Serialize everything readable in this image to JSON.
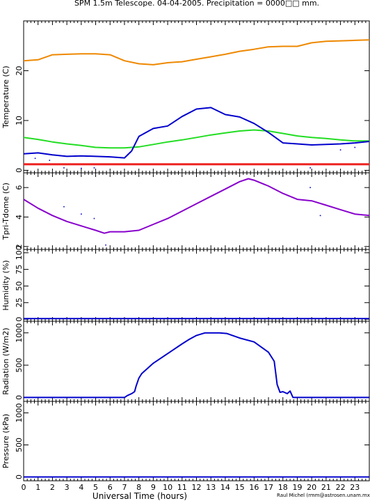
{
  "chart_data": {
    "type": "line",
    "title": "SPM 1.5m Telescope. 04-04-2005. Precipitation = 0000□□ mm.",
    "xlabel": "Universal Time (hours)",
    "credit": "Raul Michel (rmm@astrosen.unam.mx)",
    "xlim": [
      0,
      24
    ],
    "x_ticks": [
      0,
      1,
      2,
      3,
      4,
      5,
      6,
      7,
      8,
      9,
      10,
      11,
      12,
      13,
      14,
      15,
      16,
      17,
      18,
      19,
      20,
      21,
      22,
      23
    ],
    "colors": {
      "orange": "#ee8800",
      "blue": "#0000cc",
      "green": "#22dd22",
      "red": "#ee2222",
      "purple": "#8800cc"
    },
    "panels": [
      {
        "ylabel": "Temperature (C)",
        "ylim": [
          -0.5,
          30
        ],
        "y_ticks": [
          0,
          10,
          20
        ],
        "series": [
          {
            "color": "orange",
            "style": "line",
            "x": [
              0,
              1,
              2,
              3,
              4,
              5,
              6,
              7,
              8,
              9,
              10,
              11,
              12,
              13,
              14,
              15,
              16,
              17,
              18,
              19,
              20,
              21,
              22,
              23,
              24
            ],
            "values": [
              22.0,
              22.2,
              23.2,
              23.3,
              23.4,
              23.4,
              23.2,
              22.0,
              21.4,
              21.2,
              21.6,
              21.8,
              22.3,
              22.8,
              23.3,
              23.9,
              24.3,
              24.8,
              24.9,
              24.9,
              25.6,
              25.9,
              26.0,
              26.1,
              26.2
            ]
          },
          {
            "color": "green",
            "style": "line",
            "x": [
              0,
              1,
              2,
              3,
              4,
              5,
              6,
              7,
              8,
              9,
              10,
              11,
              12,
              13,
              14,
              15,
              16,
              17,
              18,
              19,
              20,
              21,
              22,
              23,
              24
            ],
            "values": [
              6.6,
              6.2,
              5.7,
              5.3,
              5.0,
              4.6,
              4.5,
              4.5,
              4.7,
              5.2,
              5.7,
              6.1,
              6.6,
              7.1,
              7.5,
              7.9,
              8.1,
              7.9,
              7.4,
              6.9,
              6.6,
              6.4,
              6.1,
              5.9,
              5.9
            ]
          },
          {
            "color": "blue",
            "style": "line",
            "x": [
              0,
              1,
              2,
              3,
              4,
              5,
              6,
              7,
              7.5,
              8,
              9,
              10,
              11,
              12,
              13,
              14,
              15,
              16,
              17,
              18,
              19,
              20,
              21,
              22,
              23,
              24
            ],
            "values": [
              3.3,
              3.5,
              3.1,
              2.8,
              2.9,
              2.8,
              2.7,
              2.5,
              3.9,
              6.8,
              8.4,
              8.9,
              10.8,
              12.3,
              12.6,
              11.2,
              10.7,
              9.4,
              7.6,
              5.5,
              5.3,
              5.1,
              5.2,
              5.3,
              5.5,
              5.8
            ]
          },
          {
            "color": "red",
            "style": "line",
            "x": [
              0,
              24
            ],
            "values": [
              1.2,
              1.2
            ]
          },
          {
            "color": "blue",
            "style": "points",
            "x": [
              0.8,
              1.8,
              2.8,
              4.0,
              4.9,
              19.9,
              22.0,
              23.0
            ],
            "values": [
              2.4,
              2.0,
              0.5,
              0.4,
              0.5,
              0.5,
              4.1,
              4.6
            ]
          }
        ]
      },
      {
        "ylabel": "Tpri-Tdome (C)",
        "ylim": [
          1.8,
          7.0
        ],
        "y_ticks": [
          2,
          4,
          6
        ],
        "series": [
          {
            "color": "purple",
            "style": "line",
            "x": [
              0,
              1,
              2,
              3,
              4,
              5,
              5.6,
              6,
              7,
              8,
              9,
              10,
              11,
              12,
              13,
              14,
              15,
              15.6,
              16,
              17,
              18,
              19,
              20,
              21,
              22,
              23,
              24
            ],
            "values": [
              5.2,
              4.6,
              4.1,
              3.7,
              3.4,
              3.1,
              2.9,
              3.0,
              3.0,
              3.1,
              3.5,
              3.9,
              4.4,
              4.9,
              5.4,
              5.9,
              6.4,
              6.6,
              6.5,
              6.1,
              5.6,
              5.2,
              5.1,
              4.8,
              4.5,
              4.2,
              4.1
            ]
          },
          {
            "color": "blue",
            "style": "points",
            "x": [
              2.8,
              4.0,
              4.9,
              5.7,
              19.9,
              20.6
            ],
            "values": [
              4.7,
              4.2,
              3.9,
              2.1,
              6.0,
              4.1
            ]
          }
        ]
      },
      {
        "ylabel": "Humidity (%)",
        "ylim": [
          -3,
          105
        ],
        "y_ticks": [
          0,
          25,
          50,
          75,
          100
        ],
        "y_tick_labels": [
          "0",
          "25",
          "50",
          "75",
          "100"
        ],
        "series": [
          {
            "color": "blue",
            "style": "line",
            "x": [
              0,
              24
            ],
            "values": [
              1,
              1
            ]
          }
        ]
      },
      {
        "ylabel": "Radiation (W/m2)",
        "ylim": [
          -60,
          1180
        ],
        "y_ticks": [
          0,
          500,
          1000
        ],
        "series": [
          {
            "color": "blue",
            "style": "line",
            "x": [
              0,
              7.0,
              7.2,
              7.5,
              7.7,
              7.8,
              8.0,
              8.2,
              9,
              10,
              11,
              11.5,
              12,
              12.6,
              13,
              13.6,
              14.1,
              15,
              16,
              17,
              17.4,
              17.6,
              17.8,
              18,
              18.3,
              18.5,
              18.7,
              24
            ],
            "values": [
              0,
              0,
              30,
              60,
              90,
              170,
              300,
              370,
              530,
              680,
              830,
              900,
              960,
              1000,
              1000,
              1000,
              990,
              920,
              860,
              700,
              560,
              200,
              80,
              90,
              60,
              100,
              0,
              0
            ]
          }
        ]
      },
      {
        "ylabel": "Pressure (kPa)",
        "ylim": [
          -60,
          1180
        ],
        "y_ticks": [
          0,
          500,
          1000
        ],
        "series": [
          {
            "color": "blue",
            "style": "line",
            "x": [
              0,
              24
            ],
            "values": [
              0,
              0
            ]
          }
        ]
      }
    ]
  }
}
